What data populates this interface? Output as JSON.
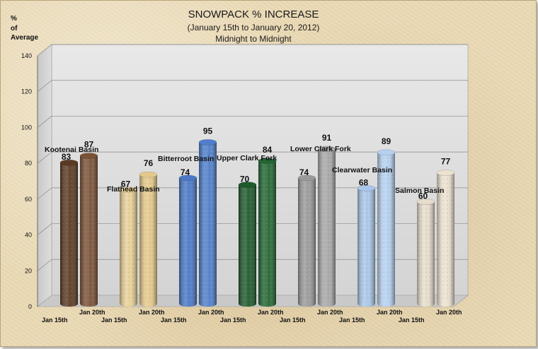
{
  "chart_data": {
    "type": "bar",
    "title": "SNOWPACK % INCREASE",
    "subtitle_1": "(January 15th to January 20, 2012)",
    "subtitle_2": "Midnight to Midnight",
    "ylabel_lines": [
      "%",
      "of",
      "Average"
    ],
    "ylim": [
      0,
      140
    ],
    "yticks": [
      0,
      20,
      40,
      60,
      80,
      100,
      120,
      140
    ],
    "grid": true,
    "series_dates": [
      "Jan 15th",
      "Jan 20th"
    ],
    "categories": [
      "Kootenai Basin",
      "Flathead Basin",
      "Bitterroot Basin",
      "Upper Clark Fork",
      "Lower  Clark Fork",
      "Clearwater Basin",
      "Salmon  Basin"
    ],
    "series": [
      {
        "values": [
          83,
          67,
          74,
          70,
          74,
          68,
          60
        ]
      },
      {
        "values": [
          87,
          76,
          95,
          84,
          91,
          89,
          77
        ]
      }
    ],
    "colors": [
      [
        "#5a3a22",
        "#7a5236"
      ],
      [
        "#e8cf96",
        "#e5c98a"
      ],
      [
        "#4a78c6",
        "#4f7fcc"
      ],
      [
        "#1e5a2c",
        "#236633"
      ],
      [
        "#9a9a9a",
        "#a8a8a8"
      ],
      [
        "#a9c6ea",
        "#b6d1f0"
      ],
      [
        "#e6dccb",
        "#ebe1cf"
      ]
    ]
  }
}
